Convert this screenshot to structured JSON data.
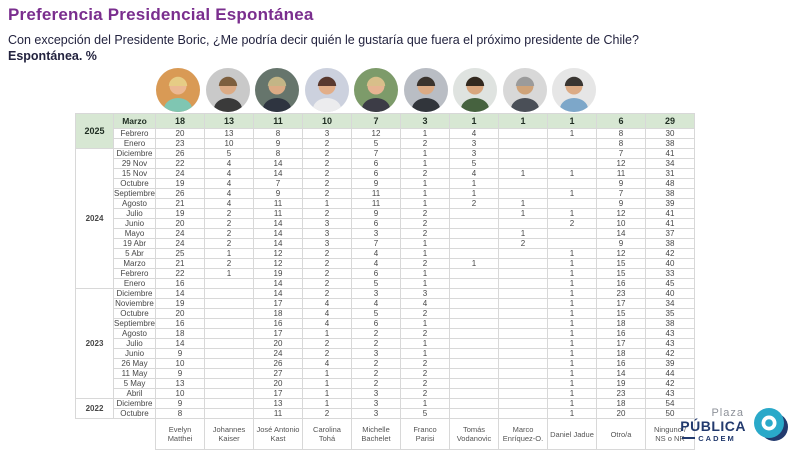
{
  "header": {
    "title": "Preferencia Presidencial Espontánea",
    "question": "Con excepción del Presidente Boric, ¿Me podría decir quién le gustaría que fuera el próximo presidente de Chile?",
    "question_bold": "Espontánea. %"
  },
  "colors": {
    "title_purple": "#7a2e8e",
    "question_navy": "#23233f",
    "highlight_row_green": "#d7e7d3",
    "grid_gray": "#d8d8d8",
    "logo_teal": "#2aa9c9",
    "logo_navy": "#223a6e"
  },
  "candidates": [
    {
      "name": "Evelyn Matthei",
      "avatar": {
        "bg": "#d99a55",
        "skin": "#ecb893",
        "hair": "#e6cc85",
        "shirt": "#7fc6b2"
      }
    },
    {
      "name": "Johannes Kaiser",
      "avatar": {
        "bg": "#c9c9c9",
        "skin": "#dcab85",
        "hair": "#7d5f3e",
        "shirt": "#3a3a3a"
      }
    },
    {
      "name": "José Antonio Kast",
      "avatar": {
        "bg": "#66756c",
        "skin": "#dcab85",
        "hair": "#c3b586",
        "shirt": "#2e3440"
      }
    },
    {
      "name": "Carolina Tohá",
      "avatar": {
        "bg": "#ccd1de",
        "skin": "#e2ae89",
        "hair": "#59392f",
        "shirt": "#ececee"
      }
    },
    {
      "name": "Michelle Bachelet",
      "avatar": {
        "bg": "#7d9b6a",
        "skin": "#e6b492",
        "hair": "#d8bf8a",
        "shirt": "#3c3c46"
      }
    },
    {
      "name": "Franco Parisi",
      "avatar": {
        "bg": "#b9bdc4",
        "skin": "#dcab85",
        "hair": "#3b342e",
        "shirt": "#31353b"
      }
    },
    {
      "name": "Tomás Vodanovic",
      "avatar": {
        "bg": "#dfe3e0",
        "skin": "#d9a67e",
        "hair": "#33291f",
        "shirt": "#46623f"
      }
    },
    {
      "name": "Marco Enríquez-O.",
      "avatar": {
        "bg": "#d8d8d8",
        "skin": "#cfa379",
        "hair": "#9b9b9b",
        "shirt": "#4a4f57"
      }
    },
    {
      "name": "Daniel Jadue",
      "avatar": {
        "bg": "#e6e6e6",
        "skin": "#dcab85",
        "hair": "#3a3632",
        "shirt": "#7da7c9"
      }
    },
    {
      "name": "Otro/a",
      "avatar": null
    },
    {
      "name": "Ninguno / NS o NR",
      "avatar": null
    }
  ],
  "table": {
    "groups": [
      {
        "year": "2025",
        "rows": [
          {
            "month": "Marzo",
            "highlight": true,
            "values": [
              "18",
              "13",
              "11",
              "10",
              "7",
              "3",
              "1",
              "1",
              "1",
              "6",
              "29"
            ]
          },
          {
            "month": "Febrero",
            "values": [
              "20",
              "13",
              "8",
              "3",
              "12",
              "1",
              "4",
              "",
              "1",
              "8",
              "30"
            ]
          },
          {
            "month": "Enero",
            "values": [
              "23",
              "10",
              "9",
              "2",
              "5",
              "2",
              "3",
              "",
              "",
              "8",
              "38"
            ]
          }
        ]
      },
      {
        "year": "2024",
        "rows": [
          {
            "month": "Diciembre",
            "values": [
              "26",
              "5",
              "8",
              "2",
              "7",
              "1",
              "3",
              "",
              "",
              "7",
              "41"
            ]
          },
          {
            "month": "29 Nov",
            "values": [
              "22",
              "4",
              "14",
              "2",
              "6",
              "1",
              "5",
              "",
              "",
              "12",
              "34"
            ]
          },
          {
            "month": "15 Nov",
            "values": [
              "24",
              "4",
              "14",
              "2",
              "6",
              "2",
              "4",
              "1",
              "1",
              "11",
              "31"
            ]
          },
          {
            "month": "Octubre",
            "values": [
              "19",
              "4",
              "7",
              "2",
              "9",
              "1",
              "1",
              "",
              "",
              "9",
              "48"
            ]
          },
          {
            "month": "Septiembre",
            "values": [
              "26",
              "4",
              "9",
              "2",
              "11",
              "1",
              "1",
              "",
              "1",
              "7",
              "38"
            ]
          },
          {
            "month": "Agosto",
            "values": [
              "21",
              "4",
              "11",
              "1",
              "11",
              "1",
              "2",
              "1",
              "",
              "9",
              "39"
            ]
          },
          {
            "month": "Julio",
            "values": [
              "19",
              "2",
              "11",
              "2",
              "9",
              "2",
              "",
              "1",
              "1",
              "12",
              "41"
            ]
          },
          {
            "month": "Junio",
            "values": [
              "20",
              "2",
              "14",
              "3",
              "6",
              "2",
              "",
              "",
              "2",
              "10",
              "41"
            ]
          },
          {
            "month": "Mayo",
            "values": [
              "24",
              "2",
              "14",
              "3",
              "3",
              "2",
              "",
              "1",
              "",
              "14",
              "37"
            ]
          },
          {
            "month": "19 Abr",
            "values": [
              "24",
              "2",
              "14",
              "3",
              "7",
              "1",
              "",
              "2",
              "",
              "9",
              "38"
            ]
          },
          {
            "month": "5 Abr",
            "values": [
              "25",
              "1",
              "12",
              "2",
              "4",
              "1",
              "",
              "",
              "1",
              "12",
              "42"
            ]
          },
          {
            "month": "Marzo",
            "values": [
              "21",
              "2",
              "12",
              "2",
              "4",
              "2",
              "1",
              "",
              "1",
              "15",
              "40"
            ]
          },
          {
            "month": "Febrero",
            "values": [
              "22",
              "1",
              "19",
              "2",
              "6",
              "1",
              "",
              "",
              "1",
              "15",
              "33"
            ]
          },
          {
            "month": "Enero",
            "values": [
              "16",
              "",
              "14",
              "2",
              "5",
              "1",
              "",
              "",
              "1",
              "16",
              "45"
            ]
          }
        ]
      },
      {
        "year": "2023",
        "rows": [
          {
            "month": "Diciembre",
            "values": [
              "14",
              "",
              "14",
              "2",
              "3",
              "3",
              "",
              "",
              "1",
              "23",
              "40"
            ]
          },
          {
            "month": "Noviembre",
            "values": [
              "19",
              "",
              "17",
              "4",
              "4",
              "4",
              "",
              "",
              "1",
              "17",
              "34"
            ]
          },
          {
            "month": "Octubre",
            "values": [
              "20",
              "",
              "18",
              "4",
              "5",
              "2",
              "",
              "",
              "1",
              "15",
              "35"
            ]
          },
          {
            "month": "Septiembre",
            "values": [
              "16",
              "",
              "16",
              "4",
              "6",
              "1",
              "",
              "",
              "1",
              "18",
              "38"
            ]
          },
          {
            "month": "Agosto",
            "values": [
              "18",
              "",
              "17",
              "1",
              "2",
              "2",
              "",
              "",
              "1",
              "16",
              "43"
            ]
          },
          {
            "month": "Julio",
            "values": [
              "14",
              "",
              "20",
              "2",
              "2",
              "1",
              "",
              "",
              "1",
              "17",
              "43"
            ]
          },
          {
            "month": "Junio",
            "values": [
              "9",
              "",
              "24",
              "2",
              "3",
              "1",
              "",
              "",
              "1",
              "18",
              "42"
            ]
          },
          {
            "month": "26 May",
            "values": [
              "10",
              "",
              "26",
              "4",
              "2",
              "2",
              "",
              "",
              "1",
              "16",
              "39"
            ]
          },
          {
            "month": "11 May",
            "values": [
              "9",
              "",
              "27",
              "1",
              "2",
              "2",
              "",
              "",
              "1",
              "14",
              "44"
            ]
          },
          {
            "month": "5 May",
            "values": [
              "13",
              "",
              "20",
              "1",
              "2",
              "2",
              "",
              "",
              "1",
              "19",
              "42"
            ]
          },
          {
            "month": "Abril",
            "values": [
              "10",
              "",
              "17",
              "1",
              "3",
              "2",
              "",
              "",
              "1",
              "23",
              "43"
            ]
          }
        ]
      },
      {
        "year": "2022",
        "rows": [
          {
            "month": "Diciembre",
            "values": [
              "9",
              "",
              "13",
              "1",
              "3",
              "1",
              "",
              "",
              "1",
              "18",
              "54"
            ]
          },
          {
            "month": "Octubre",
            "values": [
              "8",
              "",
              "11",
              "2",
              "3",
              "5",
              "",
              "",
              "1",
              "20",
              "50"
            ]
          }
        ]
      }
    ]
  },
  "logo": {
    "plaza": "Plaza",
    "publica": "PÚBLICA",
    "cadem": "CADEM"
  }
}
